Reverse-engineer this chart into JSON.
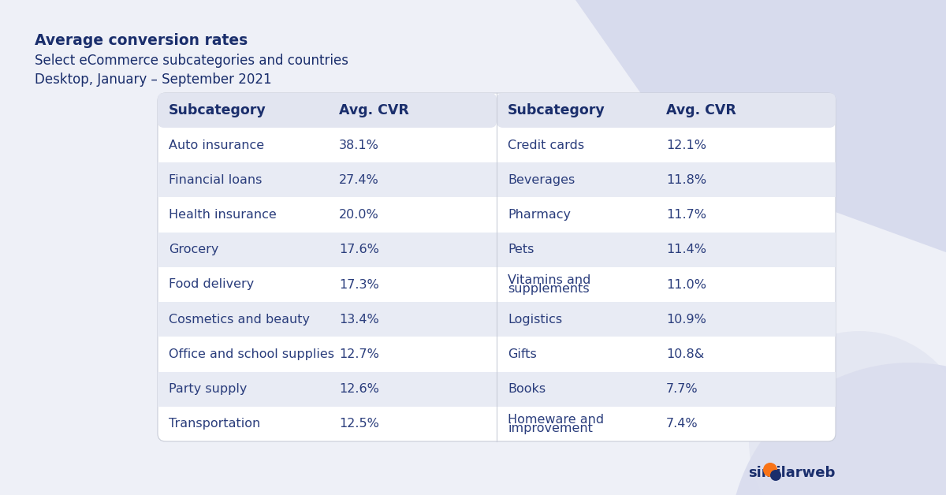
{
  "title_bold": "Average conversion rates",
  "title_line2": "Select eCommerce subcategories and countries",
  "title_line3": "Desktop, January – September 2021",
  "bg_color": "#eef0f7",
  "table_bg": "#ffffff",
  "header_bg": "#e2e5f0",
  "row_alt_bg": "#e8ebf4",
  "row_white_bg": "#ffffff",
  "header_text_color": "#1a2e6c",
  "cell_text_color": "#2a3d7c",
  "title_color": "#1a2e6c",
  "left_col_header": "Subcategory",
  "right_col_header": "Avg. CVR",
  "left_data": [
    [
      "Auto insurance",
      "38.1%"
    ],
    [
      "Financial loans",
      "27.4%"
    ],
    [
      "Health insurance",
      "20.0%"
    ],
    [
      "Grocery",
      "17.6%"
    ],
    [
      "Food delivery",
      "17.3%"
    ],
    [
      "Cosmetics and beauty",
      "13.4%"
    ],
    [
      "Office and school supplies",
      "12.7%"
    ],
    [
      "Party supply",
      "12.6%"
    ],
    [
      "Transportation",
      "12.5%"
    ]
  ],
  "right_data": [
    [
      "Credit cards",
      "12.1%"
    ],
    [
      "Beverages",
      "11.8%"
    ],
    [
      "Pharmacy",
      "11.7%"
    ],
    [
      "Pets",
      "11.4%"
    ],
    [
      "Vitamins and\nsupplements",
      "11.0%"
    ],
    [
      "Logistics",
      "10.9%"
    ],
    [
      "Gifts",
      "10.8&"
    ],
    [
      "Books",
      "7.7%"
    ],
    [
      "Homeware and\nimprovement",
      "7.4%"
    ]
  ],
  "similarweb_text_color": "#1a2e6c",
  "similarweb_orange": "#f97316",
  "deco_color1": "#d0d4ea",
  "deco_color2": "#dde0ee"
}
